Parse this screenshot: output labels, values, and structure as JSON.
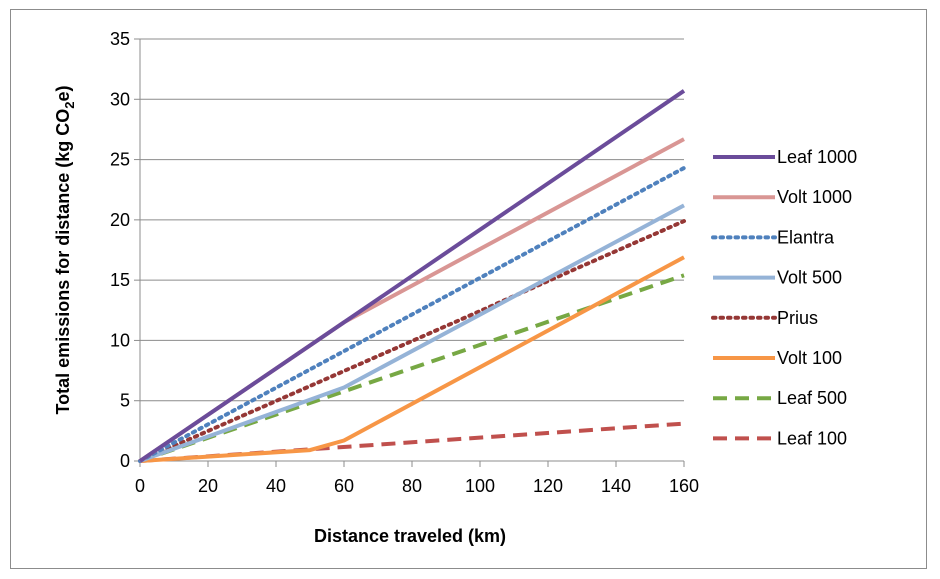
{
  "chart_data": {
    "type": "line",
    "title": "",
    "xlabel": "Distance traveled (km)",
    "ylabel_main": "Total emissions for distance (kg CO",
    "ylabel_sub": "2",
    "ylabel_end": "e)",
    "xlim": [
      0,
      160
    ],
    "ylim": [
      0,
      35
    ],
    "x_ticks": [
      0,
      20,
      40,
      60,
      80,
      100,
      120,
      140,
      160
    ],
    "y_ticks": [
      0,
      5,
      10,
      15,
      20,
      25,
      30,
      35
    ],
    "grid": "horizontal",
    "legend_position": "right",
    "series": [
      {
        "name": "Leaf 1000",
        "color": "#6b4c9a",
        "dash": "solid",
        "points": [
          [
            0,
            0
          ],
          [
            60,
            11.5
          ],
          [
            160,
            30.7
          ]
        ]
      },
      {
        "name": "Volt 1000",
        "color": "#d99694",
        "dash": "solid",
        "points": [
          [
            0,
            0
          ],
          [
            60,
            11.5
          ],
          [
            160,
            26.7
          ]
        ]
      },
      {
        "name": "Elantra",
        "color": "#4f81bd",
        "dash": "dotted",
        "points": [
          [
            0,
            0
          ],
          [
            160,
            24.3
          ]
        ]
      },
      {
        "name": "Volt 500",
        "color": "#95b3d7",
        "dash": "solid",
        "points": [
          [
            0,
            0
          ],
          [
            60,
            6.1
          ],
          [
            160,
            21.2
          ]
        ]
      },
      {
        "name": "Prius",
        "color": "#953735",
        "dash": "dotted",
        "points": [
          [
            0,
            0
          ],
          [
            160,
            19.9
          ]
        ]
      },
      {
        "name": "Volt 100",
        "color": "#f79646",
        "dash": "solid",
        "points": [
          [
            0,
            0
          ],
          [
            50,
            0.9
          ],
          [
            60,
            1.7
          ],
          [
            160,
            16.9
          ]
        ]
      },
      {
        "name": "Leaf 500",
        "color": "#77a844",
        "dash": "dashed",
        "points": [
          [
            0,
            0
          ],
          [
            160,
            15.4
          ]
        ]
      },
      {
        "name": "Leaf 100",
        "color": "#c0504d",
        "dash": "dashed",
        "points": [
          [
            0,
            0
          ],
          [
            160,
            3.1
          ]
        ]
      }
    ]
  }
}
